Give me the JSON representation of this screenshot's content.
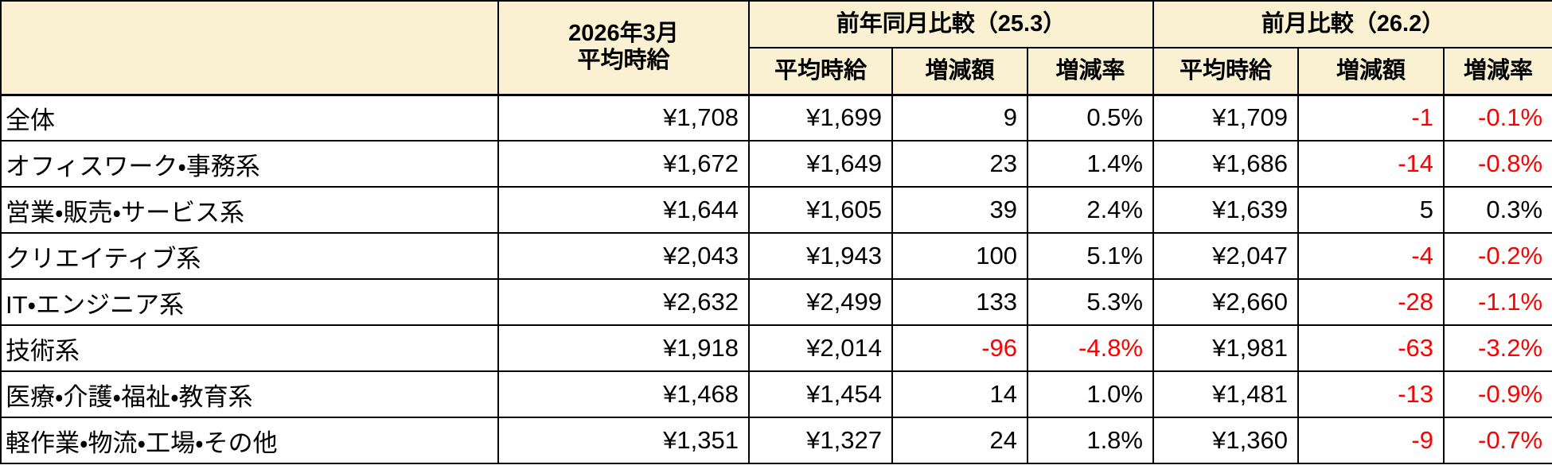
{
  "colors": {
    "header_bg": "#FAF0D2",
    "negative": "#FF0000",
    "border": "#000000"
  },
  "chart_data": {
    "type": "table",
    "corner_label": "",
    "current_month_header": "2026年3月\n平均時給",
    "groups": [
      {
        "label": "前年同月比較（25.3）",
        "sub": [
          "平均時給",
          "増減額",
          "増減率"
        ]
      },
      {
        "label": "前月比較（26.2）",
        "sub": [
          "平均時給",
          "増減額",
          "増減率"
        ]
      }
    ],
    "rows": [
      {
        "category": "全体",
        "values": [
          "¥1,708",
          "¥1,699",
          "9",
          "0.5%",
          "¥1,709",
          "-1",
          "-0.1%"
        ]
      },
      {
        "category": "オフィスワーク・事務系",
        "values": [
          "¥1,672",
          "¥1,649",
          "23",
          "1.4%",
          "¥1,686",
          "-14",
          "-0.8%"
        ]
      },
      {
        "category": "営業・販売・サービス系",
        "values": [
          "¥1,644",
          "¥1,605",
          "39",
          "2.4%",
          "¥1,639",
          "5",
          "0.3%"
        ]
      },
      {
        "category": "クリエイティブ系",
        "values": [
          "¥2,043",
          "¥1,943",
          "100",
          "5.1%",
          "¥2,047",
          "-4",
          "-0.2%"
        ]
      },
      {
        "category": "IT・エンジニア系",
        "values": [
          "¥2,632",
          "¥2,499",
          "133",
          "5.3%",
          "¥2,660",
          "-28",
          "-1.1%"
        ]
      },
      {
        "category": "技術系",
        "values": [
          "¥1,918",
          "¥2,014",
          "-96",
          "-4.8%",
          "¥1,981",
          "-63",
          "-3.2%"
        ]
      },
      {
        "category": "医療・介護・福祉・教育系",
        "values": [
          "¥1,468",
          "¥1,454",
          "14",
          "1.0%",
          "¥1,481",
          "-13",
          "-0.9%"
        ]
      },
      {
        "category": "軽作業・物流・工場・その他",
        "values": [
          "¥1,351",
          "¥1,327",
          "24",
          "1.8%",
          "¥1,360",
          "-9",
          "-0.7%"
        ]
      }
    ]
  }
}
